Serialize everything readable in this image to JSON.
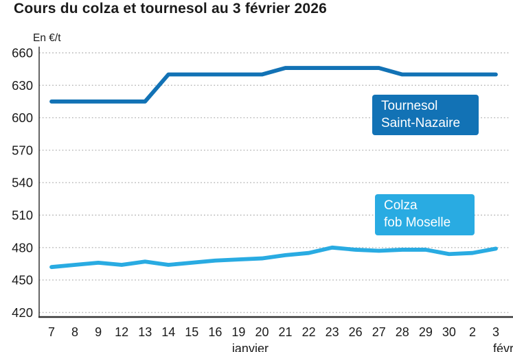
{
  "legend": {
    "tournesol": [
      "Tournesol",
      "Saint-Nazaire"
    ],
    "colza": [
      "Colza",
      "fob Moselle"
    ]
  },
  "chart_data": {
    "type": "line",
    "title": "Cours du colza et tournesol au 3 février 2026",
    "unit_ylabel": "En €/t",
    "x": [
      "7",
      "8",
      "9",
      "12",
      "13",
      "14",
      "15",
      "16",
      "19",
      "20",
      "21",
      "22",
      "23",
      "26",
      "27",
      "28",
      "29",
      "30",
      "2",
      "3"
    ],
    "x_month_groups": [
      {
        "label": "janvier",
        "span": [
          0,
          17
        ]
      },
      {
        "label": "févr.",
        "span": [
          18,
          19
        ]
      }
    ],
    "ylim": [
      420,
      660
    ],
    "ytick_step": 30,
    "grid": "horizontal-dotted",
    "legend_position": "boxes-inside-plot",
    "series": [
      {
        "name": "Tournesol Saint-Nazaire",
        "color": "#1272b5",
        "values": [
          615,
          615,
          615,
          615,
          615,
          640,
          640,
          640,
          640,
          640,
          646,
          646,
          646,
          646,
          646,
          640,
          640,
          640,
          640,
          640
        ]
      },
      {
        "name": "Colza fob Moselle",
        "color": "#29abe2",
        "values": [
          462,
          464,
          466,
          464,
          467,
          464,
          466,
          468,
          469,
          470,
          473,
          475,
          480,
          478,
          477,
          478,
          478,
          474,
          475,
          479
        ]
      }
    ],
    "axis_color": "#333333",
    "grid_color": "#b5b5b5",
    "text_color": "#1a1a1a"
  }
}
